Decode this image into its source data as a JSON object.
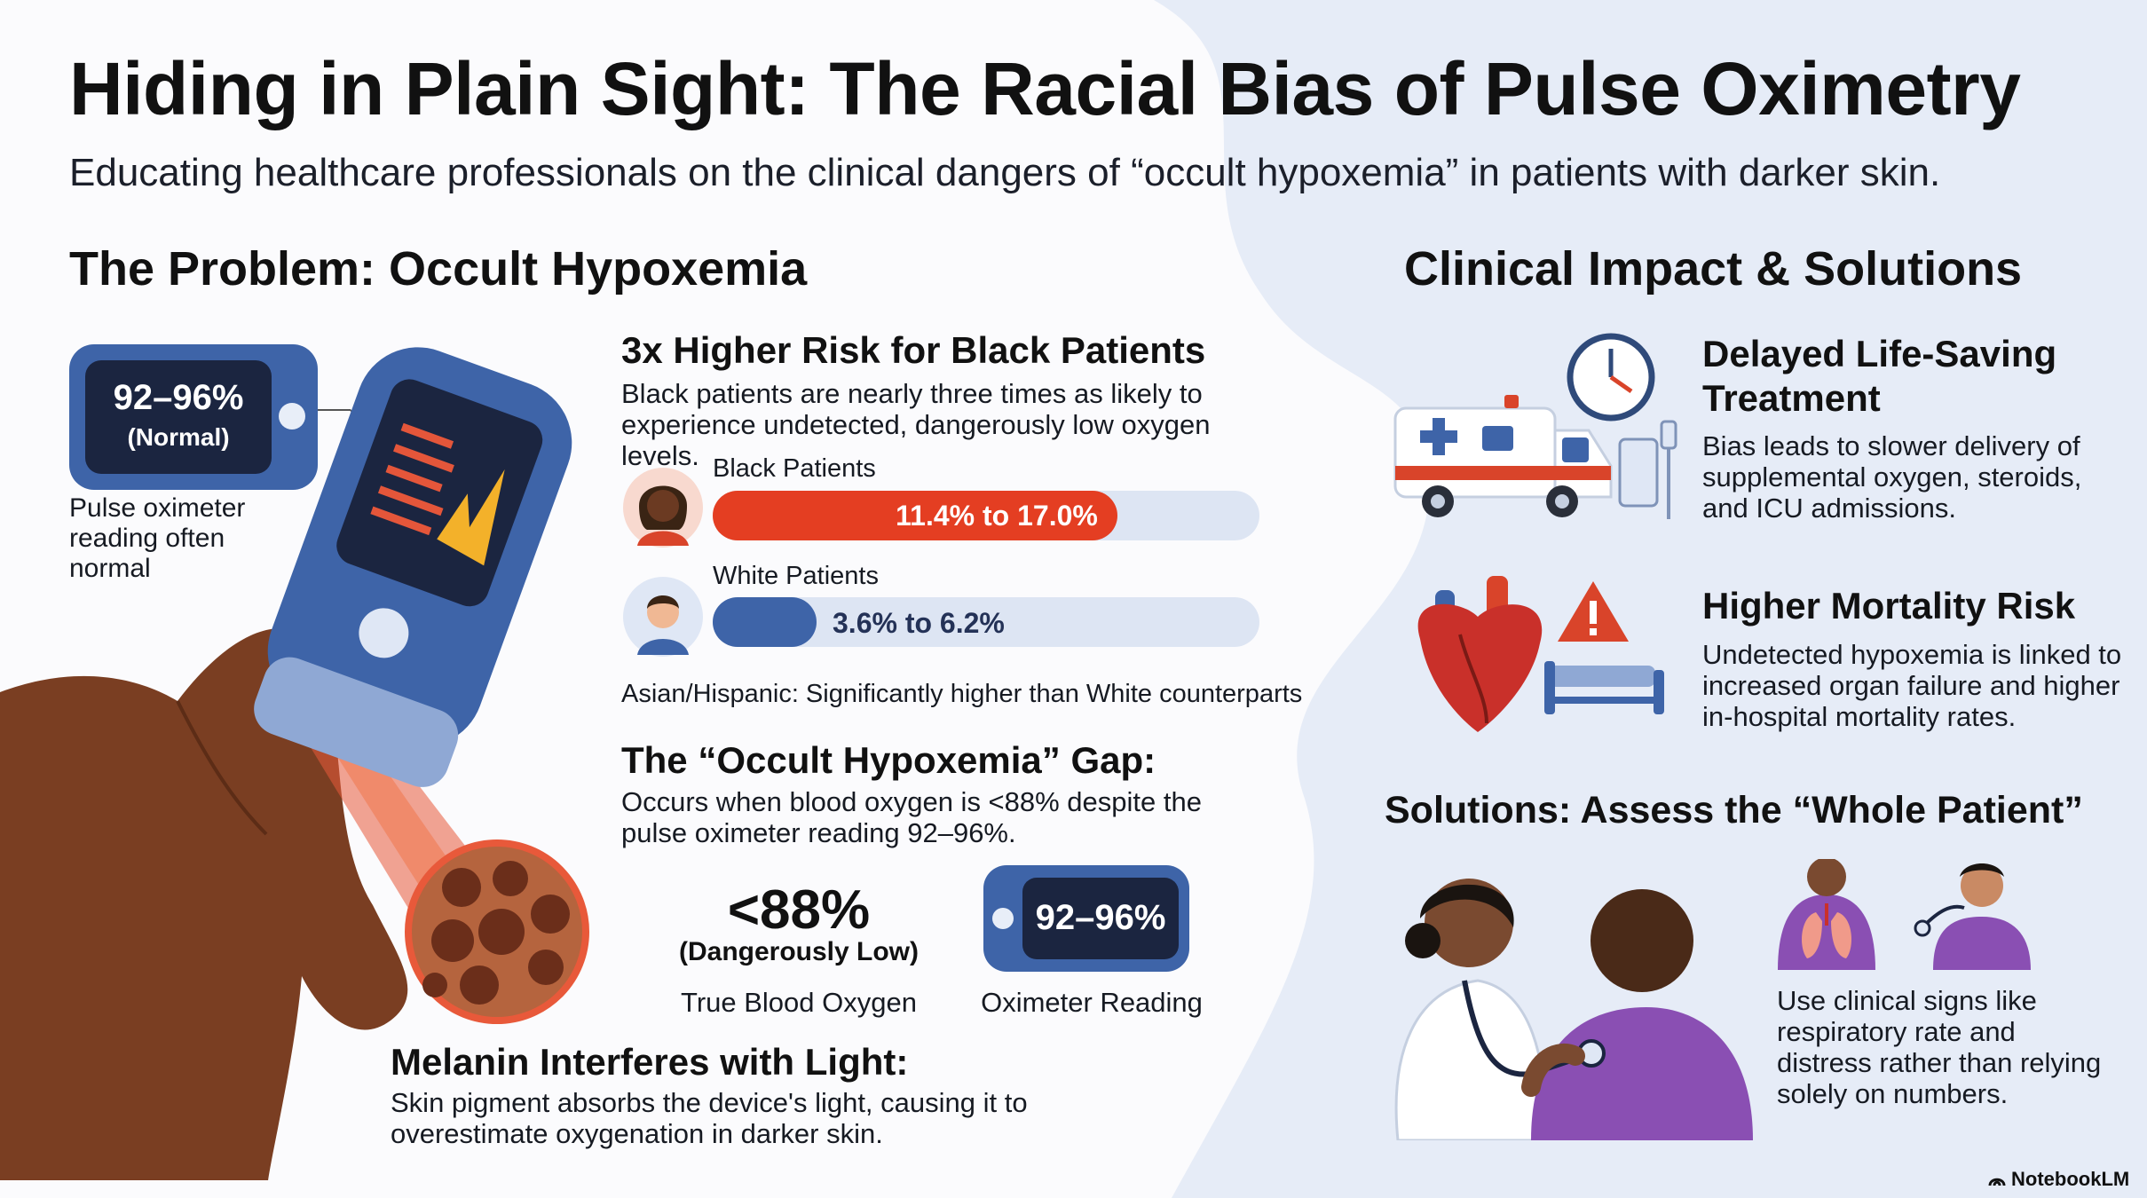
{
  "title": "Hiding in Plain Sight: The Racial Bias of Pulse Oximetry",
  "subtitle": "Educating healthcare professionals on the clinical dangers of “occult hypoxemia” in patients with darker skin.",
  "problem": {
    "heading": "The Problem: Occult Hypoxemia",
    "device_reading": "92–96%",
    "device_status": "(Normal)",
    "device_caption": "Pulse oximeter reading often normal"
  },
  "risk": {
    "heading": "3x Higher Risk for Black Patients",
    "description": "Black patients are nearly three times as likely to experience undetected, dangerously low oxygen levels.",
    "groups": [
      {
        "label": "Black Patients",
        "range": "11.4% to 17.0%",
        "fill_fraction": 0.74,
        "color": "#e43e22"
      },
      {
        "label": "White Patients",
        "range": "3.6% to 6.2%",
        "fill_fraction": 0.19,
        "color": "#3e64a8"
      }
    ],
    "note": "Asian/Hispanic: Significantly higher than White counterparts"
  },
  "gap": {
    "heading": "The “Occult Hypoxemia” Gap:",
    "description": "Occurs when blood oxygen is <88% despite the pulse oximeter reading 92–96%.",
    "true_value": "<88%",
    "true_status": "(Dangerously Low)",
    "true_caption": "True Blood Oxygen",
    "oximeter_value": "92–96%",
    "oximeter_caption": "Oximeter Reading"
  },
  "melanin": {
    "heading": "Melanin Interferes with Light:",
    "description": "Skin pigment absorbs the device's light, causing it to overestimate oxygenation in darker skin."
  },
  "impact": {
    "heading": "Clinical Impact & Solutions",
    "items": [
      {
        "title": "Delayed Life-Saving Treatment",
        "description": "Bias leads to slower delivery of supplemental oxygen, steroids, and ICU admissions."
      },
      {
        "title": "Higher Mortality Risk",
        "description": "Undetected hypoxemia is linked to increased organ failure and higher in-hospital mortality rates."
      }
    ]
  },
  "solutions": {
    "heading": "Solutions: Assess the “Whole Patient”",
    "description": "Use clinical signs like respiratory rate and distress rather than relying solely on numbers."
  },
  "brand": "NotebookLM",
  "colors": {
    "accent_red": "#e43e22",
    "device_blue": "#3e64a8",
    "panel_blue": "#e6ecf7"
  }
}
